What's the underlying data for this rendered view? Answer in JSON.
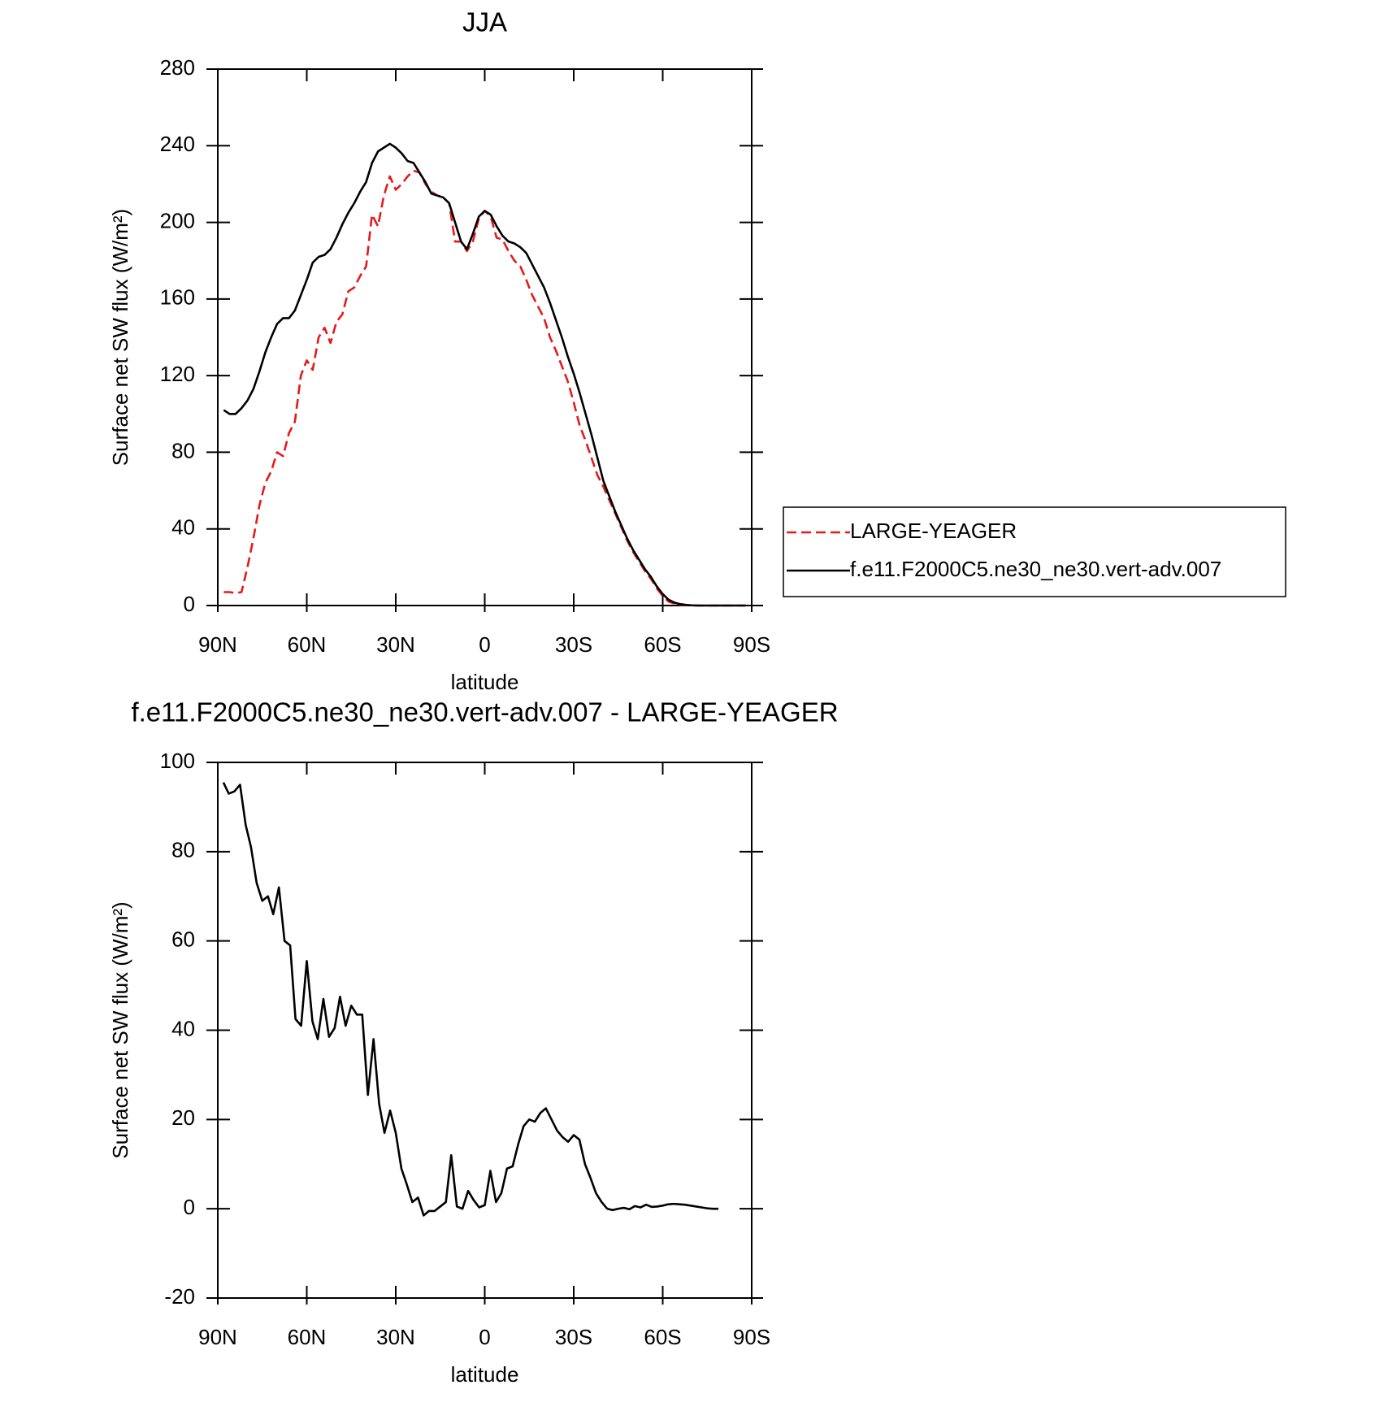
{
  "chart_data": [
    {
      "type": "line",
      "title": "JJA",
      "xlabel": "latitude",
      "ylabel": "Surface net SW flux (W/m²)",
      "xlim": [
        90,
        -90
      ],
      "ylim": [
        0,
        280
      ],
      "xticks": [
        {
          "value": 90,
          "label": "90N"
        },
        {
          "value": 60,
          "label": "60N"
        },
        {
          "value": 30,
          "label": "30N"
        },
        0,
        {
          "value": -30,
          "label": "30S"
        },
        {
          "value": -60,
          "label": "60S"
        },
        {
          "value": -90,
          "label": "90S"
        }
      ],
      "yticks": [
        0,
        40,
        80,
        120,
        160,
        200,
        240,
        280
      ],
      "legend": "right",
      "x": [
        88,
        86,
        84,
        82,
        80,
        78,
        76,
        74,
        72,
        70,
        68,
        66,
        64,
        62,
        60,
        58,
        56,
        54,
        52,
        50,
        48,
        46,
        44,
        42,
        40,
        38,
        36,
        34,
        32,
        30,
        28,
        26,
        24,
        22,
        20,
        18,
        16,
        14,
        12,
        10,
        8,
        6,
        4,
        2,
        0,
        -2,
        -4,
        -6,
        -8,
        -10,
        -12,
        -14,
        -16,
        -18,
        -20,
        -22,
        -24,
        -26,
        -28,
        -30,
        -32,
        -34,
        -36,
        -38,
        -40,
        -42,
        -44,
        -46,
        -48,
        -50,
        -52,
        -54,
        -56,
        -58,
        -60,
        -62,
        -64,
        -66,
        -68,
        -70,
        -72,
        -74,
        -76,
        -78,
        -80,
        -82,
        -84,
        -86,
        -88
      ],
      "series": [
        {
          "name": "LARGE-YEAGER",
          "color": "#e41a1c",
          "dash": true,
          "values": [
            7,
            7,
            6.5,
            7,
            20,
            35,
            52,
            64,
            70,
            80,
            78,
            90,
            96,
            120,
            128,
            123,
            140,
            145,
            137,
            148,
            152,
            164,
            166,
            172,
            177,
            204,
            198,
            214,
            224,
            217,
            220,
            224,
            227,
            226,
            220,
            216,
            214,
            213,
            210,
            190,
            190,
            185,
            190,
            202,
            206,
            203,
            192,
            191,
            185,
            180,
            177,
            170,
            162,
            156,
            150,
            140,
            133,
            125,
            117,
            106,
            94,
            86,
            77,
            68,
            62,
            55,
            48,
            41,
            34,
            28,
            23,
            18,
            14,
            9,
            5,
            2,
            1,
            0.4,
            0.1,
            0,
            0,
            0,
            0,
            0,
            0,
            0,
            0,
            0,
            0
          ]
        },
        {
          "name": "f.e11.F2000C5.ne30_ne30.vert-adv.007",
          "color": "#000000",
          "dash": false,
          "values": [
            102,
            100,
            100,
            103,
            107,
            113,
            122,
            132,
            140,
            147,
            150,
            150,
            154,
            162,
            170,
            179,
            182,
            183,
            186,
            192,
            199,
            205,
            210,
            216,
            221,
            231,
            237,
            239,
            241,
            239,
            236,
            232,
            231,
            226,
            221,
            215,
            214,
            213,
            210,
            200,
            190,
            186,
            194,
            203,
            206,
            204,
            198,
            193,
            190,
            189,
            187,
            184,
            178,
            172,
            166,
            158,
            149,
            140,
            130,
            121,
            111,
            100,
            89,
            77,
            65,
            57,
            49,
            42,
            35,
            29,
            24,
            19,
            15,
            10,
            6,
            3,
            1.5,
            0.7,
            0.3,
            0.1,
            0,
            0,
            0,
            0,
            0,
            0,
            0,
            0,
            0
          ]
        }
      ]
    },
    {
      "type": "line",
      "title": "f.e11.F2000C5.ne30_ne30.vert-adv.007 - LARGE-YEAGER",
      "xlabel": "latitude",
      "ylabel": "Surface net SW flux (W/m²)",
      "xlim": [
        90,
        -90
      ],
      "ylim": [
        -20,
        100
      ],
      "xticks": [
        {
          "value": 90,
          "label": "90N"
        },
        {
          "value": 60,
          "label": "60N"
        },
        {
          "value": 30,
          "label": "30N"
        },
        0,
        {
          "value": -30,
          "label": "30S"
        },
        {
          "value": -60,
          "label": "60S"
        },
        {
          "value": -90,
          "label": "90S"
        }
      ],
      "yticks": [
        -20,
        0,
        20,
        40,
        60,
        80,
        100
      ],
      "x": [
        88.1,
        86.3,
        84.4,
        82.5,
        80.6,
        78.8,
        76.9,
        75,
        73.1,
        71.3,
        69.4,
        67.5,
        65.6,
        63.8,
        61.9,
        60,
        58.1,
        56.3,
        54.4,
        52.5,
        50.6,
        48.8,
        46.9,
        45,
        43.1,
        41.3,
        39.4,
        37.5,
        35.6,
        33.8,
        31.9,
        30,
        28.1,
        26.3,
        24.4,
        22.5,
        20.6,
        18.8,
        16.9,
        15,
        13.1,
        11.3,
        9.4,
        7.5,
        5.6,
        3.8,
        1.9,
        0,
        -1.9,
        -3.8,
        -5.6,
        -7.5,
        -9.4,
        -11.3,
        -13.1,
        -15,
        -16.9,
        -18.8,
        -20.6,
        -22.5,
        -24.4,
        -26.3,
        -28.1,
        -30,
        -31.9,
        -33.8,
        -35.6,
        -37.5,
        -39.4,
        -41.3,
        -43.1,
        -45,
        -46.9,
        -48.8,
        -50.6,
        -52.5,
        -54.4,
        -56.3,
        -58.1,
        -60,
        -61.9,
        -63.8,
        -65.6,
        -67.5,
        -69.4,
        -71.3,
        -73.1,
        -75,
        -76.9,
        -78.8
      ],
      "series": [
        {
          "color": "#000000",
          "dash": false,
          "values": [
            95.5,
            93,
            93.5,
            95,
            86,
            81,
            73,
            69,
            70,
            66,
            72,
            60,
            59,
            42.5,
            41,
            55.5,
            42,
            38,
            47,
            38.5,
            40.5,
            47.5,
            41,
            45.5,
            43.5,
            43.5,
            25.5,
            38,
            23.5,
            17,
            22,
            17,
            9,
            5.5,
            1.5,
            2.5,
            -1.5,
            -0.5,
            -0.5,
            0.5,
            1.5,
            12,
            0.5,
            0,
            4,
            2,
            0.3,
            0.8,
            8.5,
            1.5,
            3.5,
            9,
            9.5,
            14.5,
            18.5,
            20,
            19.5,
            21.5,
            22.5,
            20,
            17.5,
            16,
            15,
            16.5,
            15.5,
            10,
            7,
            3.5,
            1.5,
            0,
            -0.3,
            0,
            0.2,
            -0.1,
            0.6,
            0.3,
            0.9,
            0.4,
            0.5,
            0.7,
            1,
            1.1,
            1,
            0.9,
            0.7,
            0.5,
            0.3,
            0.1,
            0,
            0
          ]
        }
      ]
    }
  ]
}
